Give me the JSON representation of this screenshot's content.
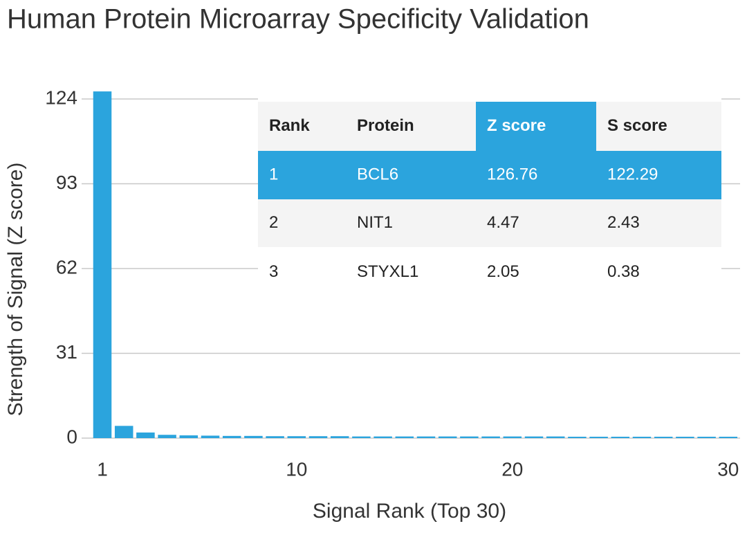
{
  "chart_data": {
    "type": "bar",
    "title": "Human Protein Microarray Specificity Validation",
    "x_label": "Signal Rank (Top 30)",
    "y_label": "Strength of Signal (Z score)",
    "x": [
      1,
      2,
      3,
      4,
      5,
      6,
      7,
      8,
      9,
      10,
      11,
      12,
      13,
      14,
      15,
      16,
      17,
      18,
      19,
      20,
      21,
      22,
      23,
      24,
      25,
      26,
      27,
      28,
      29,
      30
    ],
    "values": [
      126.76,
      4.47,
      2.05,
      1.2,
      1.0,
      0.9,
      0.8,
      0.8,
      0.7,
      0.7,
      0.7,
      0.7,
      0.6,
      0.6,
      0.6,
      0.6,
      0.6,
      0.6,
      0.6,
      0.6,
      0.6,
      0.6,
      0.5,
      0.5,
      0.5,
      0.5,
      0.5,
      0.5,
      0.5,
      0.5
    ],
    "color": "#2ba4dd",
    "xlim": [
      0.5,
      30.5
    ],
    "xticks": [
      1,
      10,
      20,
      30
    ],
    "ylim": [
      0,
      124
    ],
    "yticks": [
      0,
      31,
      62,
      93,
      124
    ],
    "grid": true
  },
  "table": {
    "columns": [
      "Rank",
      "Protein",
      "Z score",
      "S score"
    ],
    "rows": [
      [
        "1",
        "BCL6",
        "126.76",
        "122.29"
      ],
      [
        "2",
        "NIT1",
        "4.47",
        "2.43"
      ],
      [
        "3",
        "STYXL1",
        "2.05",
        "0.38"
      ]
    ]
  }
}
